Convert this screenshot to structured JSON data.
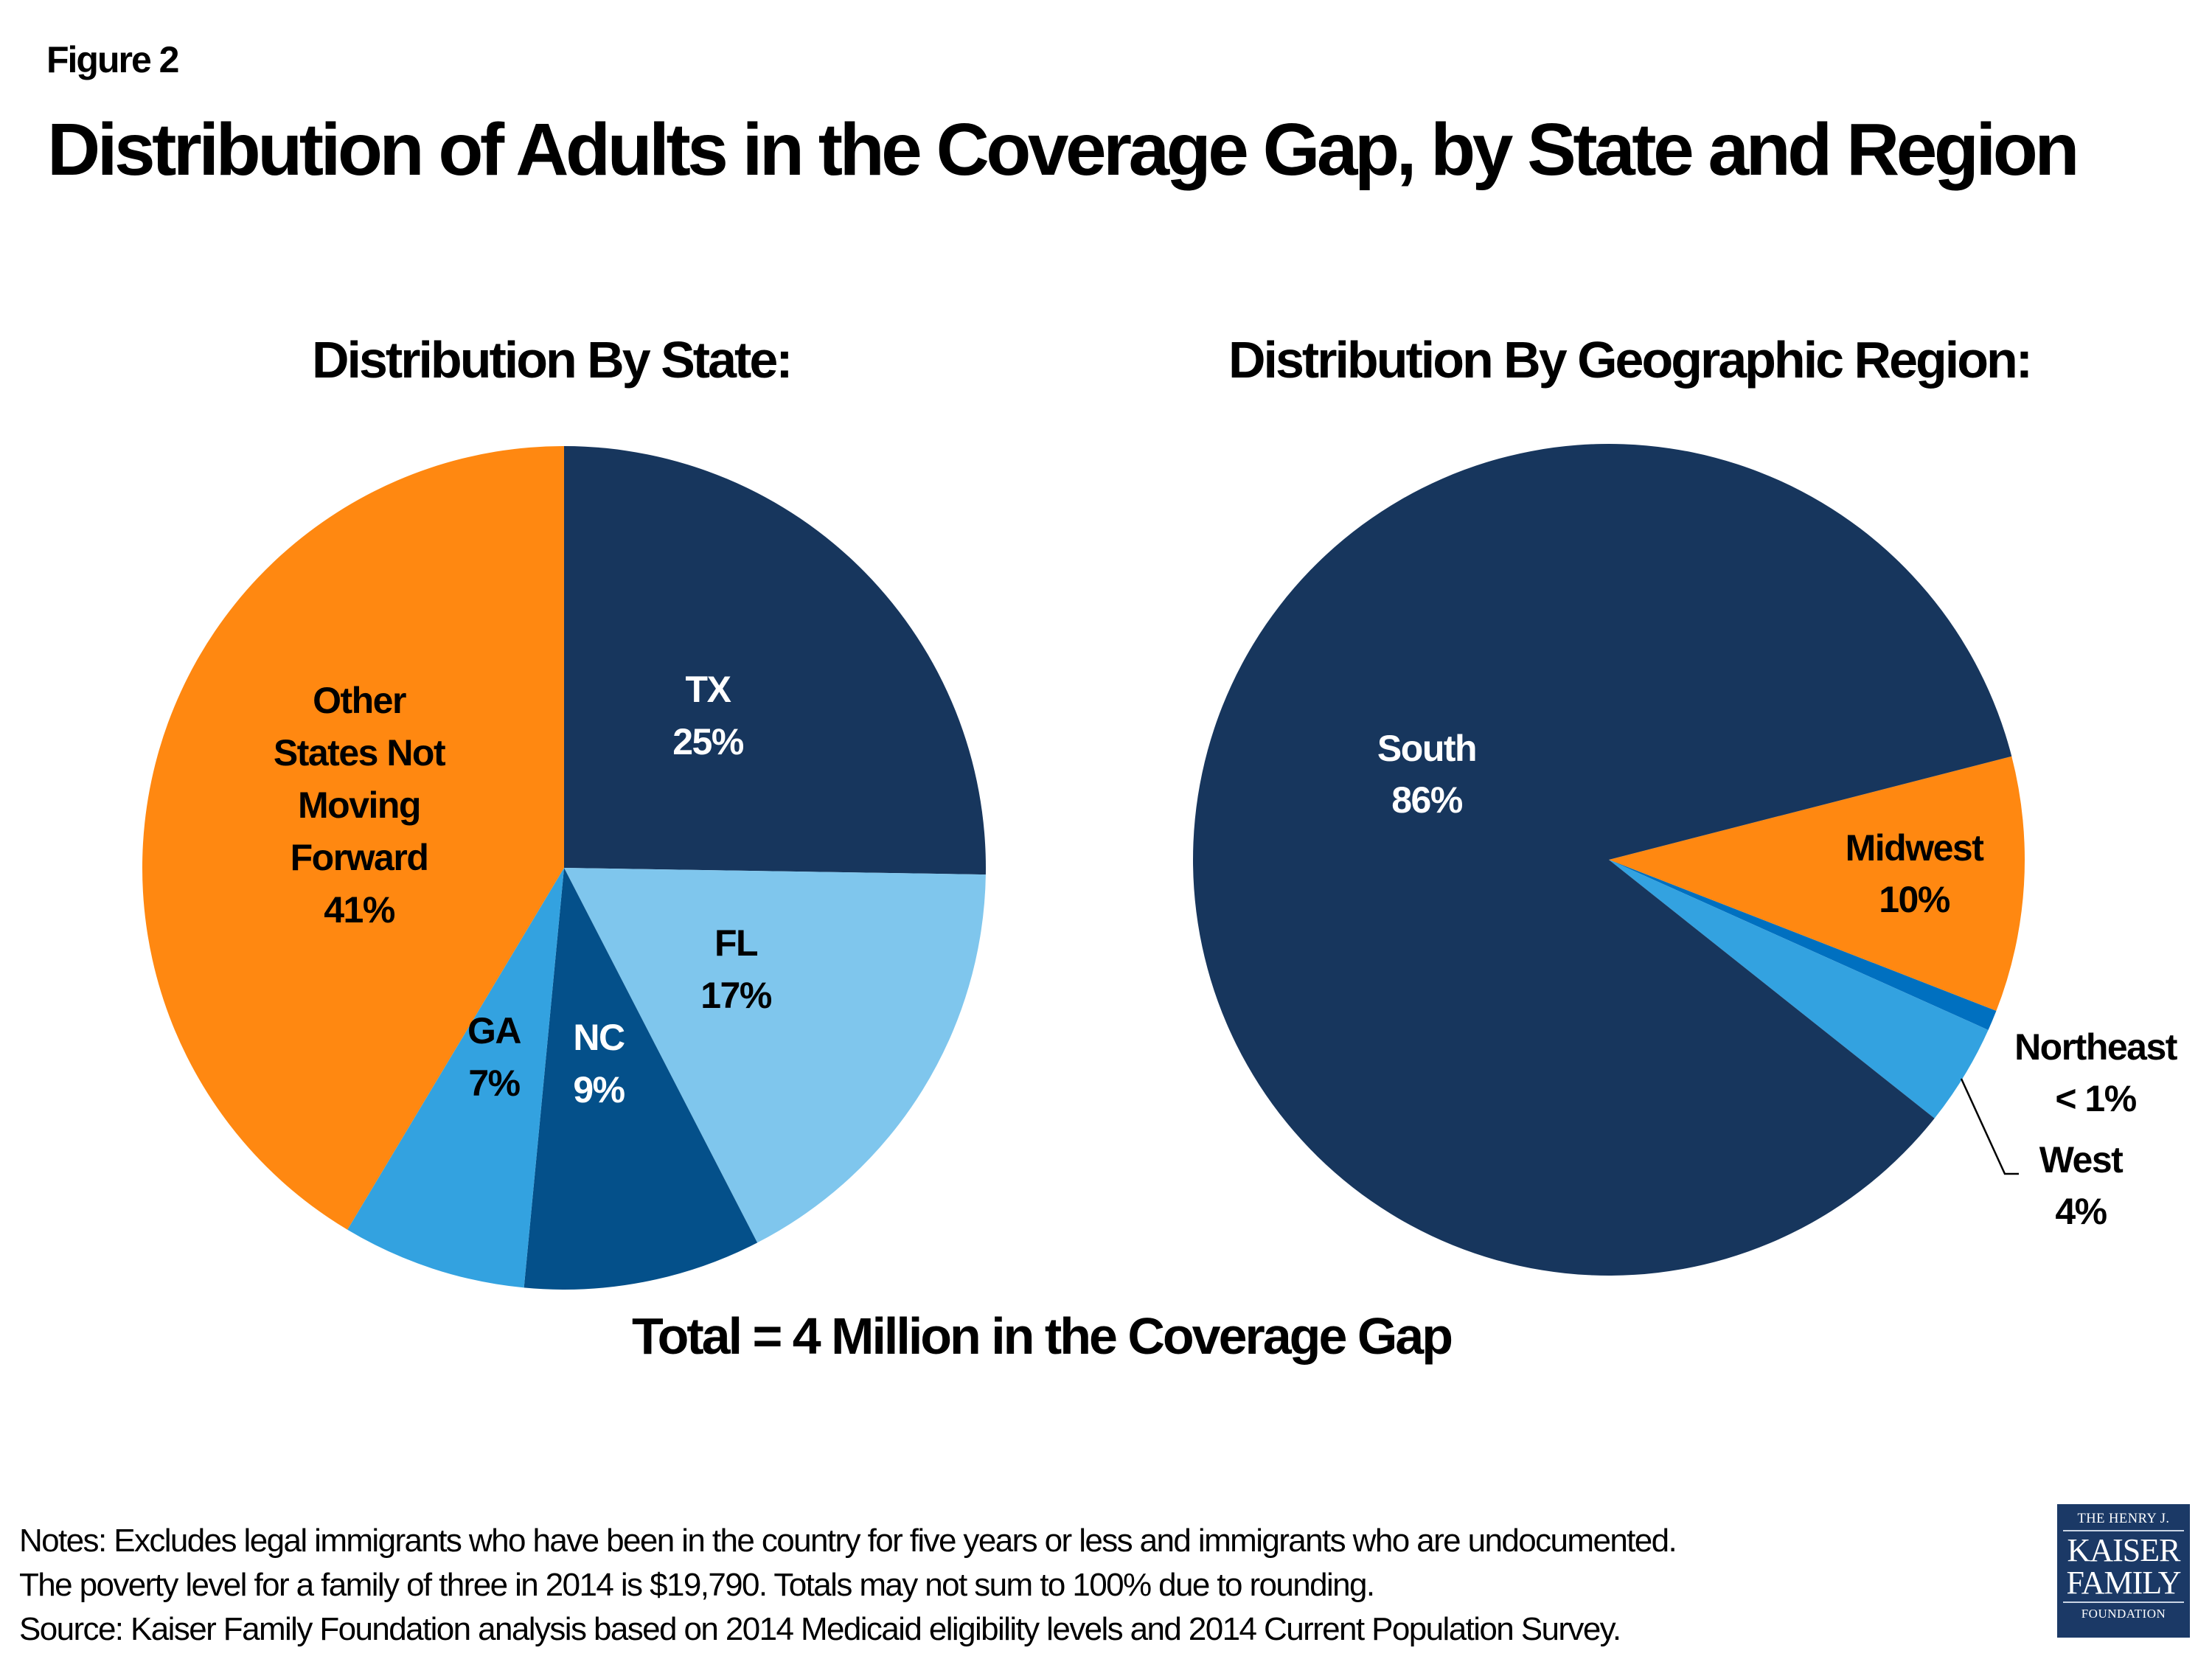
{
  "figure_label": "Figure 2",
  "title": "Distribution of Adults in the Coverage Gap, by State and Region",
  "total_caption": "Total = 4 Million in the Coverage Gap",
  "notes": [
    "Notes: Excludes legal immigrants who have been in the country for five years or less and immigrants who are undocumented.",
    "The poverty level for a family of three in 2014 is $19,790. Totals may not sum to 100% due to rounding.",
    "Source: Kaiser Family Foundation analysis based on 2014 Medicaid eligibility levels and 2014 Current Population Survey."
  ],
  "logo": {
    "line1": "THE HENRY J.",
    "line2": "KAISER",
    "line3": "FAMILY",
    "line4": "FOUNDATION"
  },
  "chart_data": [
    {
      "type": "pie",
      "title": "Distribution By State:",
      "units": "percent",
      "slices": [
        {
          "name": "TX",
          "label_lines": [
            "TX",
            "25%"
          ],
          "value": 25,
          "color": "#17365D",
          "text_color": "#FFFFFF"
        },
        {
          "name": "FL",
          "label_lines": [
            "FL",
            "17%"
          ],
          "value": 17,
          "color": "#7FC6ED",
          "text_color": "#000000"
        },
        {
          "name": "NC",
          "label_lines": [
            "NC",
            "9%"
          ],
          "value": 9,
          "color": "#04508A",
          "text_color": "#FFFFFF"
        },
        {
          "name": "GA",
          "label_lines": [
            "GA",
            "7%"
          ],
          "value": 7,
          "color": "#33A2E0",
          "text_color": "#000000"
        },
        {
          "name": "Other States Not Moving Forward",
          "label_lines": [
            "Other",
            "States Not",
            "Moving",
            "Forward",
            "41%"
          ],
          "value": 41,
          "color": "#FF8811",
          "text_color": "#000000"
        }
      ]
    },
    {
      "type": "pie",
      "title": "Distribution By Geographic Region:",
      "units": "percent",
      "slices": [
        {
          "name": "Midwest",
          "label_lines": [
            "Midwest",
            "10%"
          ],
          "value": 10,
          "color": "#FF8811",
          "text_color": "#000000"
        },
        {
          "name": "Northeast",
          "label_lines": [
            "Northeast",
            "< 1%"
          ],
          "value": 0.8,
          "display": "< 1%",
          "color": "#0070C0",
          "text_color": "#000000",
          "label_outside": true
        },
        {
          "name": "West",
          "label_lines": [
            "West",
            "4%"
          ],
          "value": 4,
          "color": "#33A2E0",
          "text_color": "#000000",
          "label_outside": true,
          "leader_line": true
        },
        {
          "name": "South",
          "label_lines": [
            "South",
            "86%"
          ],
          "value": 86,
          "color": "#17365D",
          "text_color": "#FFFFFF"
        }
      ]
    }
  ]
}
